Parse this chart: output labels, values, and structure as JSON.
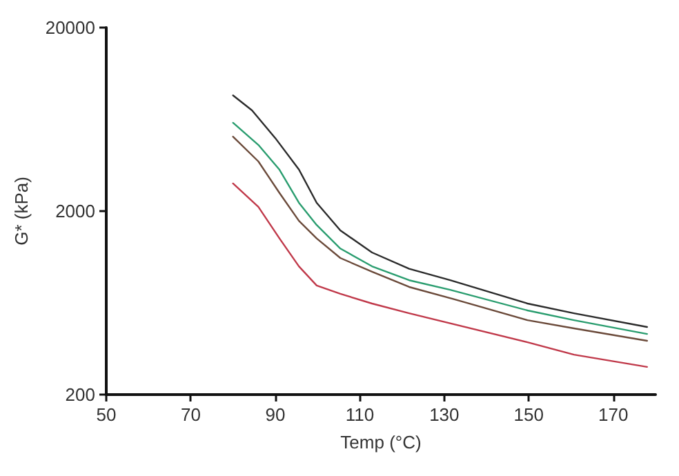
{
  "chart_data": {
    "type": "line",
    "xlabel": "Temp (°C)",
    "ylabel": "G* (kPa)",
    "log": "y",
    "grid": false,
    "marker": "none",
    "line_style": "solid",
    "xlim": [
      50,
      180
    ],
    "xticks": [
      50,
      70,
      90,
      110,
      130,
      150,
      170
    ],
    "ylim": [
      200,
      20000
    ],
    "yticks": [
      200,
      2000,
      20000
    ],
    "series": [
      {
        "color": "#2b2b2b",
        "x": [
          80,
          84.5,
          90,
          95.6,
          99.8,
          105.4,
          112.9,
          121.7,
          131.4,
          149.7,
          160.7,
          178
        ],
        "values": [
          8540,
          7080,
          5000,
          3370,
          2220,
          1570,
          1190,
          970,
          840,
          627,
          555,
          467
        ]
      },
      {
        "color": "#2a9d6f",
        "x": [
          80,
          86,
          91,
          95.6,
          99.8,
          105.4,
          112.9,
          121.7,
          131.4,
          149.7,
          160.7,
          178
        ],
        "values": [
          6060,
          4590,
          3360,
          2220,
          1680,
          1250,
          1000,
          840,
          745,
          575,
          509,
          428
        ]
      },
      {
        "color": "#6b4a3a",
        "x": [
          80,
          86,
          91,
          95.6,
          99.8,
          105.4,
          112.9,
          121.7,
          132.4,
          149.7,
          160.7,
          178
        ],
        "values": [
          5090,
          3730,
          2510,
          1770,
          1420,
          1110,
          934,
          772,
          661,
          509,
          459,
          393
        ]
      },
      {
        "color": "#c0394a",
        "x": [
          80,
          86,
          91,
          95.6,
          99.8,
          105.4,
          112.9,
          121.7,
          149.7,
          160.7,
          178
        ],
        "values": [
          2830,
          2110,
          1420,
          1000,
          786,
          708,
          627,
          555,
          386,
          330,
          283
        ]
      }
    ]
  }
}
